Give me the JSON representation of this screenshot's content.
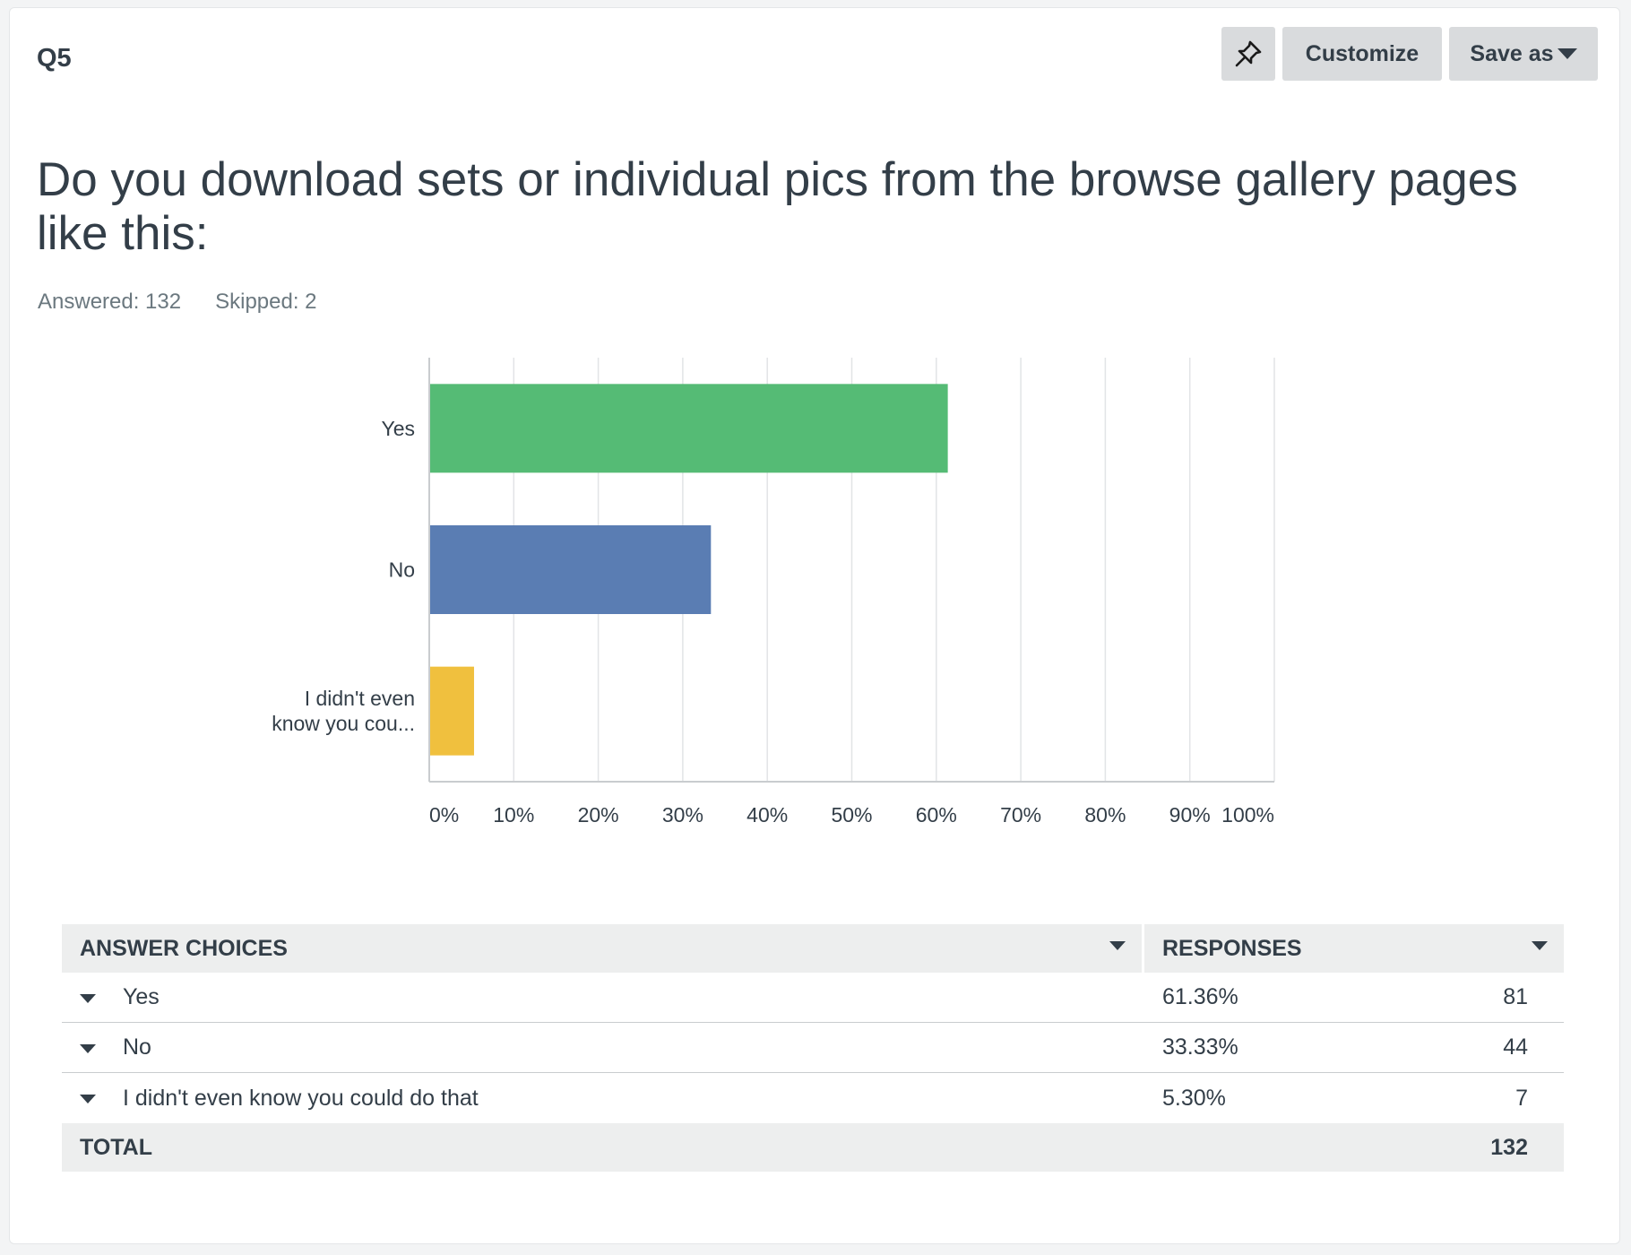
{
  "header": {
    "question_number": "Q5",
    "customize_label": "Customize",
    "save_label": "Save as"
  },
  "question": {
    "text": "Do you download sets or individual pics from the browse gallery pages like this:",
    "answered": "Answered: 132",
    "skipped": "Skipped: 2"
  },
  "colors": {
    "yes": "#55bb75",
    "no": "#5a7db3",
    "didnt_know": "#f0c03e",
    "grid": "#e2e4e6",
    "axis": "#c9cccf"
  },
  "chart_data": {
    "type": "bar",
    "orientation": "horizontal",
    "categories": [
      "Yes",
      "No",
      "I didn't even know you cou..."
    ],
    "category_lines": [
      [
        "Yes"
      ],
      [
        "No"
      ],
      [
        "I didn't even",
        "know you cou..."
      ]
    ],
    "values": [
      61.36,
      33.33,
      5.3
    ],
    "xlim": [
      0,
      100
    ],
    "x_ticks": [
      0,
      10,
      20,
      30,
      40,
      50,
      60,
      70,
      80,
      90,
      100
    ],
    "x_tick_labels": [
      "0%",
      "10%",
      "20%",
      "30%",
      "40%",
      "50%",
      "60%",
      "70%",
      "80%",
      "90%",
      "100%"
    ],
    "grid": true,
    "legend": "none"
  },
  "table": {
    "col_choices": "ANSWER CHOICES",
    "col_responses": "RESPONSES",
    "rows": [
      {
        "choice": "Yes",
        "pct": "61.36%",
        "count": "81"
      },
      {
        "choice": "No",
        "pct": "33.33%",
        "count": "44"
      },
      {
        "choice": "I didn't even know you could do that",
        "pct": "5.30%",
        "count": "7"
      }
    ],
    "total_label": "TOTAL",
    "total_count": "132"
  }
}
